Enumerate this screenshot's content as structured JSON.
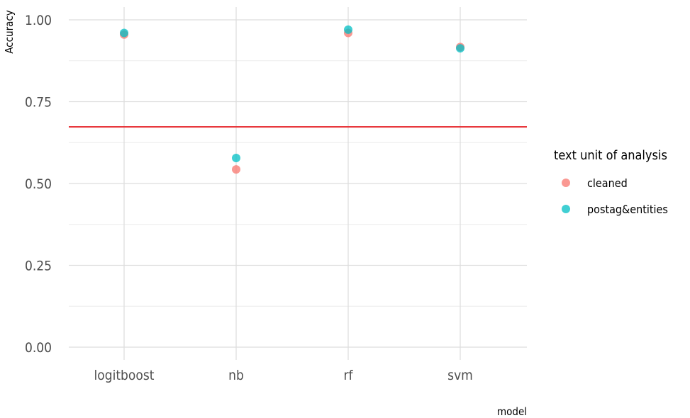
{
  "chart_data": {
    "type": "scatter",
    "categories": [
      "logitboost",
      "nb",
      "rf",
      "svm"
    ],
    "series": [
      {
        "name": "cleaned",
        "color": "#F8766D",
        "values": [
          0.955,
          0.543,
          0.96,
          0.917
        ]
      },
      {
        "name": "postag&entities",
        "color": "#00BFC4",
        "values": [
          0.96,
          0.578,
          0.97,
          0.913
        ]
      }
    ],
    "reference_line": {
      "y": 0.673,
      "color": "#E8383D"
    },
    "xlabel": "model",
    "ylabel": "Accuracy",
    "ylim": [
      0,
      1
    ],
    "y_ticks": [
      "0.00",
      "0.25",
      "0.50",
      "0.75",
      "1.00"
    ],
    "y_tick_values": [
      0,
      0.25,
      0.5,
      0.75,
      1.0
    ],
    "grid": true,
    "legend": {
      "title": "text unit of analysis",
      "position": "right"
    }
  }
}
